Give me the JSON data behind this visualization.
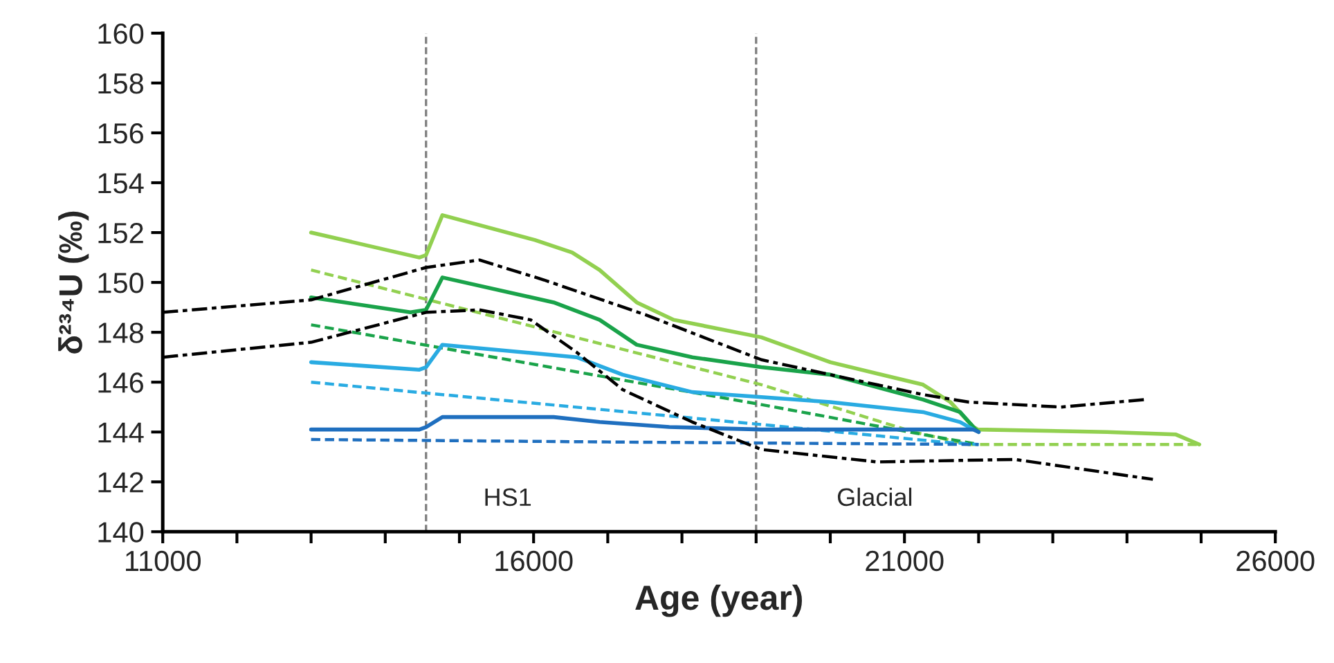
{
  "chart_data": {
    "type": "line",
    "xlabel": "Age (year)",
    "ylabel": "δ²³⁴U (‰)",
    "xlim": [
      11000,
      26000
    ],
    "ylim": [
      140,
      160
    ],
    "xticks": [
      11000,
      {
        "value": 12000,
        "label": null
      },
      {
        "value": 13000,
        "label": null
      },
      {
        "value": 14000,
        "label": null
      },
      {
        "value": 15000,
        "label": null
      },
      16000,
      {
        "value": 17000,
        "label": null
      },
      {
        "value": 18000,
        "label": null
      },
      {
        "value": 19000,
        "label": null
      },
      {
        "value": 20000,
        "label": null
      },
      21000,
      {
        "value": 22000,
        "label": null
      },
      {
        "value": 23000,
        "label": null
      },
      {
        "value": 24000,
        "label": null
      },
      {
        "value": 25000,
        "label": null
      },
      26000
    ],
    "yticks": [
      140,
      142,
      144,
      146,
      148,
      150,
      152,
      154,
      156,
      158,
      160
    ],
    "grid": false,
    "legend": false,
    "series": [
      {
        "color": "#92d050",
        "line_style": "solid",
        "x": [
          13000,
          14460,
          14550,
          14770,
          16020,
          16520,
          16890,
          17390,
          17890,
          19070,
          20000,
          21250,
          21620,
          21930,
          21990,
          23730,
          24660,
          24975
        ],
        "values": [
          152.0,
          151.0,
          151.1,
          152.7,
          151.7,
          151.2,
          150.5,
          149.2,
          148.5,
          147.8,
          146.8,
          145.9,
          145.2,
          144.2,
          144.1,
          144.0,
          143.9,
          143.5
        ]
      },
      {
        "color": "#92d050",
        "line_style": "dashed",
        "x": [
          13000,
          19070,
          21124,
          21870,
          24975
        ],
        "values": [
          150.5,
          145.9,
          144.0,
          143.5,
          143.5
        ]
      },
      {
        "color": "#1aa34a",
        "line_style": "solid",
        "x": [
          13000,
          14340,
          14550,
          14770,
          16270,
          16890,
          17390,
          18140,
          19070,
          20000,
          21250,
          21750,
          21960,
          22000
        ],
        "values": [
          149.4,
          148.8,
          148.9,
          150.2,
          149.2,
          148.5,
          147.5,
          147.0,
          146.6,
          146.3,
          145.3,
          144.8,
          144.1,
          144.0
        ]
      },
      {
        "color": "#1aa34a",
        "line_style": "dashed",
        "x": [
          13000,
          19070,
          21250,
          22000
        ],
        "values": [
          148.3,
          145.1,
          143.9,
          143.5
        ]
      },
      {
        "color": "#29abe2",
        "line_style": "solid",
        "x": [
          13000,
          14460,
          14550,
          14770,
          16580,
          17200,
          18140,
          19070,
          20000,
          21250,
          21750,
          21930
        ],
        "values": [
          146.8,
          146.5,
          146.6,
          147.5,
          147.0,
          146.3,
          145.6,
          145.4,
          145.2,
          144.8,
          144.4,
          144.1
        ]
      },
      {
        "color": "#29abe2",
        "line_style": "dashed",
        "x": [
          13000,
          14770,
          19070,
          21500,
          22000
        ],
        "values": [
          146.0,
          145.5,
          144.3,
          143.6,
          143.5
        ]
      },
      {
        "color": "#1f6fbf",
        "line_style": "solid",
        "x": [
          13000,
          14460,
          14550,
          14770,
          16270,
          16890,
          17830,
          19070,
          21930,
          22000
        ],
        "values": [
          144.1,
          144.1,
          144.2,
          144.6,
          144.6,
          144.4,
          144.2,
          144.1,
          144.1,
          144.0
        ]
      },
      {
        "color": "#1f6fbf",
        "line_style": "dashed",
        "x": [
          13000,
          17000,
          22000
        ],
        "values": [
          143.7,
          143.6,
          143.5
        ]
      },
      {
        "color": "#000000",
        "line_style": "dashdot",
        "x": [
          11000,
          13000,
          14550,
          15270,
          16140,
          17510,
          19070,
          20000,
          21250,
          21870,
          23110,
          24230
        ],
        "values": [
          148.8,
          149.3,
          150.6,
          150.9,
          150.1,
          148.7,
          146.9,
          146.3,
          145.5,
          145.2,
          145.0,
          145.3
        ]
      },
      {
        "color": "#000000",
        "line_style": "dashdot",
        "x": [
          11000,
          13000,
          14550,
          15270,
          15960,
          16580,
          17200,
          18140,
          19070,
          20630,
          22490,
          24350
        ],
        "values": [
          147.0,
          147.6,
          148.8,
          148.9,
          148.5,
          147.2,
          145.7,
          144.4,
          143.3,
          142.8,
          142.9,
          142.1
        ]
      }
    ],
    "ref_lines": [
      {
        "axis": "x",
        "value": 14550,
        "color": "#808080",
        "line_style": "dashed"
      },
      {
        "axis": "x",
        "value": 19000,
        "color": "#808080",
        "line_style": "dashed"
      }
    ],
    "annotations": [
      "HS1",
      "Glacial"
    ]
  }
}
